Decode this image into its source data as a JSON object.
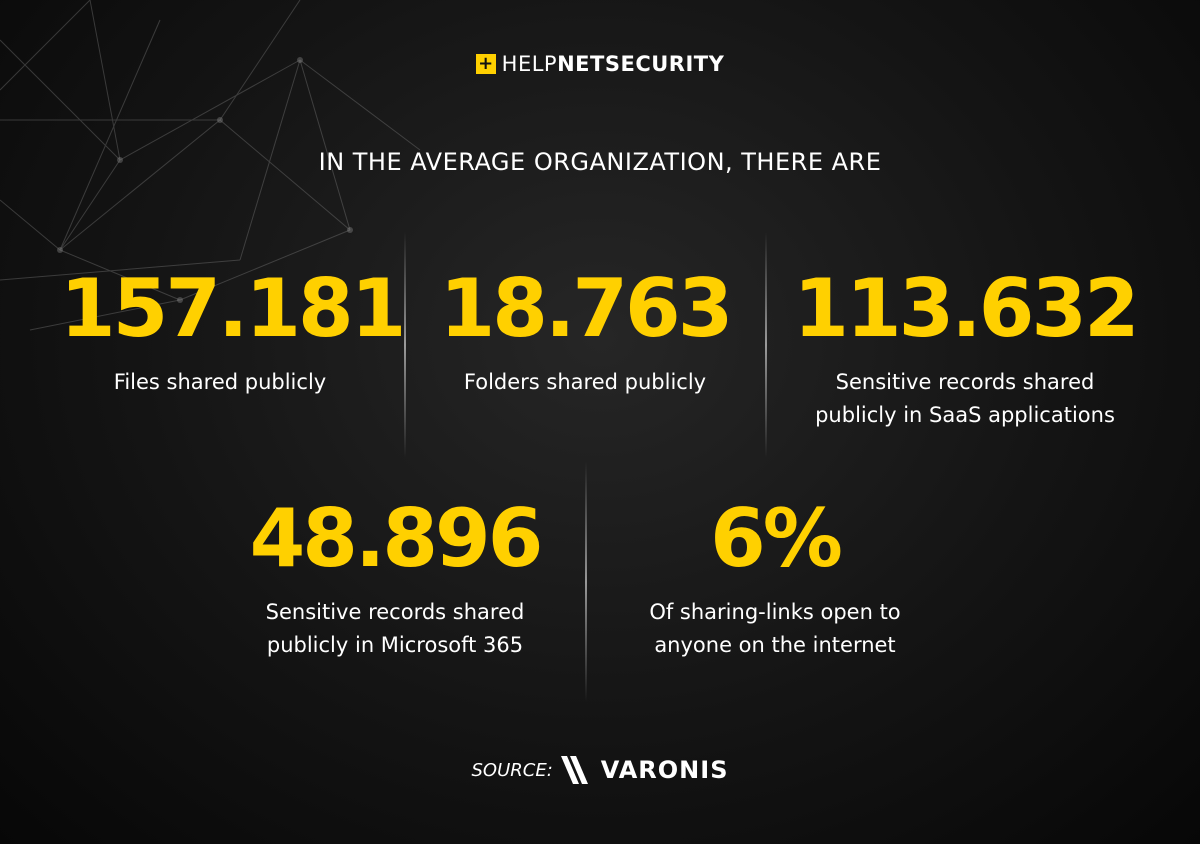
{
  "logo": {
    "mark": "+",
    "text_thin": "HELP",
    "text_bold_1": "NET",
    "text_bold_2": "SECURITY",
    "accent_color": "#ffd000"
  },
  "headline": "IN THE AVERAGE ORGANIZATION, THERE ARE",
  "stats": [
    {
      "value": "157.181",
      "label": [
        "Files shared publicly"
      ]
    },
    {
      "value": "18.763",
      "label": [
        "Folders shared publicly"
      ]
    },
    {
      "value": "113.632",
      "label": [
        "Sensitive records shared",
        "publicly in SaaS applications"
      ]
    },
    {
      "value": "48.896",
      "label": [
        "Sensitive records shared",
        "publicly in Microsoft 365"
      ]
    },
    {
      "value": "6%",
      "label": [
        "Of sharing-links open to",
        "anyone on the internet"
      ]
    }
  ],
  "source": {
    "label": "SOURCE:",
    "brand": "VARONIS",
    "brand_icon": "varonis-chevron-icon"
  },
  "colors": {
    "background": "#0d0d0d",
    "number": "#ffd000",
    "text": "#ffffff"
  }
}
